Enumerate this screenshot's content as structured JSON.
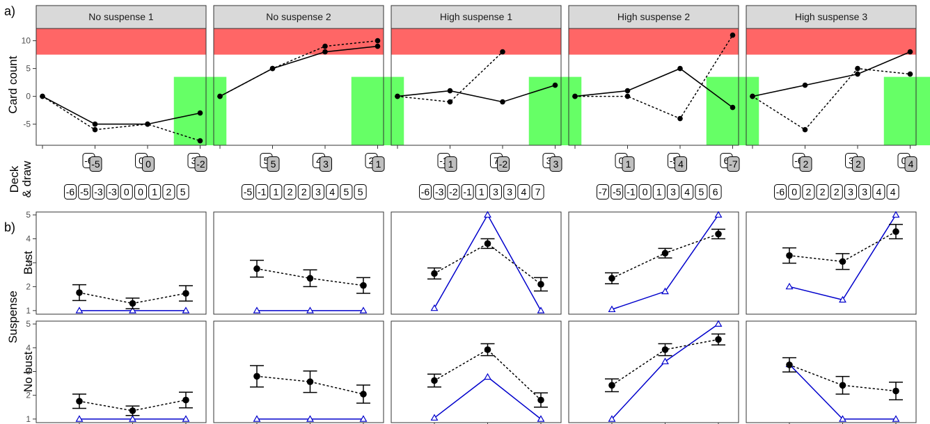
{
  "figure_labels": {
    "a": "a)",
    "b": "b)"
  },
  "axis_titles": {
    "a_y": "Card count",
    "deck_line1": "Deck",
    "deck_line2": "& draw",
    "b_y": "Suspense",
    "b_row_bust": "Bust",
    "b_row_nobust": "No bust"
  },
  "colors": {
    "bust_zone": "#ff6666",
    "win_zone": "#66ff66",
    "strip": "#d9d9d9",
    "model_line": "#0000cc",
    "card_grey": "#bfbfbf"
  },
  "chart_data": [
    {
      "type": "line",
      "part": "a",
      "y_ticks": [
        -5,
        0,
        5,
        10
      ],
      "ylim": [
        -8.8,
        12.2
      ],
      "bust_zone": [
        7.5,
        12.2
      ],
      "panels": [
        {
          "title": "No suspense 1",
          "x": [
            0,
            1,
            2,
            3
          ],
          "series": [
            {
              "line": "solid",
              "values": [
                0,
                -5,
                -5,
                -3
              ]
            },
            {
              "line": "dotted",
              "values": [
                0,
                -6,
                -5,
                -8
              ]
            }
          ],
          "win_zone": [
            2.5,
            3.5,
            -8.8,
            3.5
          ],
          "draws": [
            {
              "left": "-6",
              "right": "-5"
            },
            {
              "left": "0",
              "right": "0"
            },
            {
              "left": "3",
              "right": "-2"
            }
          ],
          "deck": [
            "-6",
            "-5",
            "-3",
            "-3",
            "0",
            "0",
            "1",
            "2",
            "5"
          ]
        },
        {
          "title": "No suspense 2",
          "x": [
            0,
            1,
            2,
            3
          ],
          "series": [
            {
              "line": "solid",
              "values": [
                0,
                5,
                8,
                9
              ]
            },
            {
              "line": "dotted",
              "values": [
                0,
                5,
                9,
                10
              ]
            }
          ],
          "win_zone": [
            2.5,
            3.5,
            -8.8,
            3.5
          ],
          "draws": [
            {
              "left": "5",
              "right": "5"
            },
            {
              "left": "4",
              "right": "3"
            },
            {
              "left": "2",
              "right": "1"
            }
          ],
          "deck": [
            "-5",
            "-1",
            "1",
            "2",
            "2",
            "3",
            "4",
            "5",
            "5"
          ]
        },
        {
          "title": "High suspense 1",
          "x": [
            0,
            1,
            2,
            3
          ],
          "series": [
            {
              "line": "solid",
              "values": [
                0,
                1,
                -1,
                2
              ]
            },
            {
              "line": "dotted",
              "values": [
                0,
                -1,
                8,
                null
              ]
            }
          ],
          "win_zone": [
            2.5,
            3.5,
            -8.8,
            3.5
          ],
          "draws": [
            {
              "left": "-1",
              "right": "1"
            },
            {
              "left": "7",
              "right": "-2"
            },
            {
              "left": "3",
              "right": "3"
            }
          ],
          "deck": [
            "-6",
            "-3",
            "-2",
            "-1",
            "1",
            "3",
            "3",
            "4",
            "7"
          ]
        },
        {
          "title": "High suspense 2",
          "x": [
            0,
            1,
            2,
            3
          ],
          "series": [
            {
              "line": "solid",
              "values": [
                0,
                1,
                5,
                -2
              ]
            },
            {
              "line": "dotted",
              "values": [
                0,
                0,
                -4,
                11
              ]
            }
          ],
          "win_zone": [
            2.5,
            3.5,
            -8.8,
            3.5
          ],
          "draws": [
            {
              "left": "0",
              "right": "1"
            },
            {
              "left": "-5",
              "right": "4"
            },
            {
              "left": "6",
              "right": "-7"
            }
          ],
          "deck": [
            "-7",
            "-5",
            "-1",
            "0",
            "1",
            "3",
            "4",
            "5",
            "6"
          ]
        },
        {
          "title": "High suspense 3",
          "x": [
            0,
            1,
            2,
            3
          ],
          "series": [
            {
              "line": "solid",
              "values": [
                0,
                2,
                4,
                8
              ]
            },
            {
              "line": "dotted",
              "values": [
                0,
                -6,
                5,
                4
              ]
            }
          ],
          "win_zone": [
            2.5,
            3.5,
            -8.8,
            3.5
          ],
          "draws": [
            {
              "left": "-6",
              "right": "2"
            },
            {
              "left": "3",
              "right": "2"
            },
            {
              "left": "0",
              "right": "4"
            }
          ],
          "deck": [
            "-6",
            "0",
            "2",
            "2",
            "2",
            "3",
            "3",
            "4",
            "4"
          ]
        }
      ]
    },
    {
      "type": "line",
      "part": "b",
      "x": [
        1,
        2,
        3
      ],
      "y_ticks": [
        1,
        2,
        3,
        4,
        5
      ],
      "ylim": [
        0.85,
        5.12
      ],
      "rows": [
        {
          "name": "Bust",
          "panels": [
            {
              "mean": [
                1.75,
                1.3,
                1.72
              ],
              "ci": [
                [
                  1.42,
                  2.08
                ],
                [
                  1.08,
                  1.52
                ],
                [
                  1.4,
                  2.04
                ]
              ],
              "model": [
                1,
                1,
                1
              ]
            },
            {
              "mean": [
                2.75,
                2.35,
                2.05
              ],
              "ci": [
                [
                  2.4,
                  3.1
                ],
                [
                  2.0,
                  2.7
                ],
                [
                  1.72,
                  2.38
                ]
              ],
              "model": [
                1,
                1,
                1
              ]
            },
            {
              "mean": [
                2.55,
                3.8,
                2.1
              ],
              "ci": [
                [
                  2.32,
                  2.78
                ],
                [
                  3.6,
                  4.0
                ],
                [
                  1.82,
                  2.38
                ]
              ],
              "model": [
                1.1,
                5,
                1
              ]
            },
            {
              "mean": [
                2.35,
                3.4,
                4.2
              ],
              "ci": [
                [
                  2.12,
                  2.58
                ],
                [
                  3.2,
                  3.6
                ],
                [
                  4.0,
                  4.4
                ]
              ],
              "model": [
                1.05,
                1.8,
                5
              ]
            },
            {
              "mean": [
                3.3,
                3.05,
                4.3
              ],
              "ci": [
                [
                  2.98,
                  3.62
                ],
                [
                  2.72,
                  3.38
                ],
                [
                  4.0,
                  4.6
                ]
              ],
              "model": [
                2,
                1.45,
                5
              ]
            }
          ]
        },
        {
          "name": "No bust",
          "panels": [
            {
              "mean": [
                1.75,
                1.35,
                1.8
              ],
              "ci": [
                [
                  1.45,
                  2.05
                ],
                [
                  1.15,
                  1.55
                ],
                [
                  1.47,
                  2.13
                ]
              ],
              "model": [
                1,
                1,
                1
              ]
            },
            {
              "mean": [
                2.8,
                2.57,
                2.05
              ],
              "ci": [
                [
                  2.35,
                  3.25
                ],
                [
                  2.12,
                  3.02
                ],
                [
                  1.67,
                  2.43
                ]
              ],
              "model": [
                1,
                1,
                1
              ]
            },
            {
              "mean": [
                2.62,
                3.92,
                1.8
              ],
              "ci": [
                [
                  2.35,
                  2.89
                ],
                [
                  3.67,
                  4.17
                ],
                [
                  1.5,
                  2.1
                ]
              ],
              "model": [
                1.05,
                2.77,
                1
              ]
            },
            {
              "mean": [
                2.42,
                3.92,
                4.35
              ],
              "ci": [
                [
                  2.15,
                  2.69
                ],
                [
                  3.67,
                  4.17
                ],
                [
                  4.12,
                  4.58
                ]
              ],
              "model": [
                1,
                3.42,
                5
              ]
            },
            {
              "mean": [
                3.28,
                2.42,
                2.18
              ],
              "ci": [
                [
                  2.98,
                  3.58
                ],
                [
                  2.05,
                  2.79
                ],
                [
                  1.81,
                  2.55
                ]
              ],
              "model": [
                3.3,
                1,
                1
              ]
            }
          ]
        }
      ]
    }
  ]
}
